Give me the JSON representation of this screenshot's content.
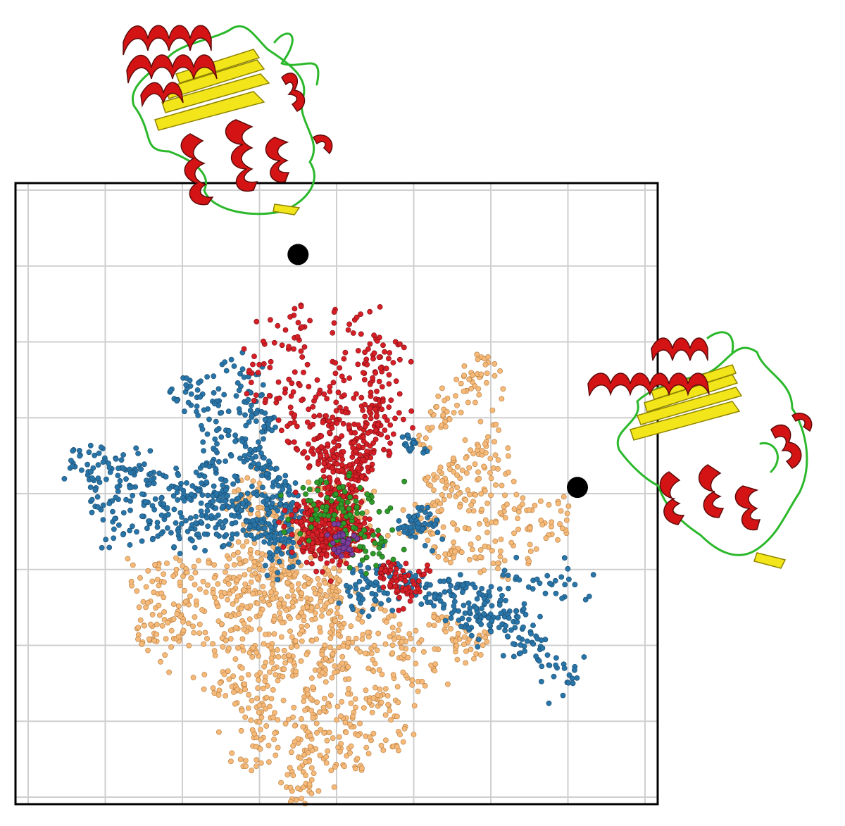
{
  "chart_data": {
    "type": "scatter",
    "title": "",
    "xlabel": "",
    "ylabel": "",
    "xlim": [
      0,
      1
    ],
    "ylim": [
      0,
      1
    ],
    "grid": true,
    "grid_divisions": 8,
    "legend": "none",
    "center": [
      0.5,
      0.43
    ],
    "series": [
      {
        "color": "#f5b979",
        "edge": "#b57a3a",
        "arms": [
          {
            "angle": -165,
            "r0": 0.06,
            "r1": 0.34,
            "n": 95
          },
          {
            "angle": -152,
            "r0": 0.07,
            "r1": 0.36,
            "n": 140
          },
          {
            "angle": -140,
            "r0": 0.08,
            "r1": 0.28,
            "n": 90
          },
          {
            "angle": -125,
            "r0": 0.08,
            "r1": 0.33,
            "n": 110
          },
          {
            "angle": -112,
            "r0": 0.07,
            "r1": 0.4,
            "n": 130
          },
          {
            "angle": -98,
            "r0": 0.05,
            "r1": 0.45,
            "n": 170
          },
          {
            "angle": -88,
            "r0": 0.05,
            "r1": 0.38,
            "n": 120
          },
          {
            "angle": -74,
            "r0": 0.08,
            "r1": 0.36,
            "n": 80
          },
          {
            "angle": -58,
            "r0": 0.12,
            "r1": 0.3,
            "n": 60
          },
          {
            "angle": -40,
            "r0": 0.2,
            "r1": 0.3,
            "n": 50
          },
          {
            "angle": -8,
            "r0": 0.15,
            "r1": 0.33,
            "n": 50
          },
          {
            "angle": 5,
            "r0": 0.1,
            "r1": 0.38,
            "n": 80
          },
          {
            "angle": 18,
            "r0": 0.12,
            "r1": 0.3,
            "n": 60
          },
          {
            "angle": 30,
            "r0": 0.16,
            "r1": 0.32,
            "n": 60
          },
          {
            "angle": 48,
            "r0": 0.2,
            "r1": 0.38,
            "n": 70
          },
          {
            "angle": 155,
            "r0": 0.07,
            "r1": 0.18,
            "n": 60
          },
          {
            "angle": 175,
            "r0": 0.05,
            "r1": 0.16,
            "n": 50
          }
        ],
        "clusters": [
          {
            "cx": 0.5,
            "cy": 0.45,
            "r": 0.06,
            "n": 120
          }
        ]
      },
      {
        "color": "#2a75a8",
        "edge": "#164a6e",
        "arms": [
          {
            "angle": 162,
            "r0": 0.15,
            "r1": 0.45,
            "n": 140
          },
          {
            "angle": 170,
            "r0": 0.1,
            "r1": 0.4,
            "n": 110
          },
          {
            "angle": 178,
            "r0": 0.08,
            "r1": 0.38,
            "n": 90
          },
          {
            "angle": 150,
            "r0": 0.06,
            "r1": 0.25,
            "n": 90
          },
          {
            "angle": 135,
            "r0": 0.08,
            "r1": 0.36,
            "n": 120
          },
          {
            "angle": 122,
            "r0": 0.2,
            "r1": 0.34,
            "n": 60
          },
          {
            "angle": -30,
            "r0": 0.1,
            "r1": 0.45,
            "n": 150
          },
          {
            "angle": -22,
            "r0": 0.18,
            "r1": 0.35,
            "n": 70
          },
          {
            "angle": -12,
            "r0": 0.25,
            "r1": 0.42,
            "n": 30
          },
          {
            "angle": 8,
            "r0": 0.1,
            "r1": 0.17,
            "n": 50
          },
          {
            "angle": 52,
            "r0": 0.18,
            "r1": 0.2,
            "n": 20
          }
        ],
        "clusters": [
          {
            "cx": 0.41,
            "cy": 0.42,
            "r": 0.04,
            "n": 60
          },
          {
            "cx": 0.56,
            "cy": 0.35,
            "r": 0.05,
            "n": 60
          }
        ]
      },
      {
        "color": "#d61f26",
        "edge": "#7a0d12",
        "arms": [
          {
            "angle": 101,
            "r0": 0.12,
            "r1": 0.38,
            "n": 60
          },
          {
            "angle": 87,
            "r0": 0.1,
            "r1": 0.38,
            "n": 50
          },
          {
            "angle": 76,
            "r0": 0.06,
            "r1": 0.33,
            "n": 150
          },
          {
            "angle": 67,
            "r0": 0.1,
            "r1": 0.24,
            "n": 60
          },
          {
            "angle": 113,
            "r0": 0.15,
            "r1": 0.34,
            "n": 45
          },
          {
            "angle": 96,
            "r0": 0.05,
            "r1": 0.2,
            "n": 90
          },
          {
            "angle": -35,
            "r0": 0.08,
            "r1": 0.16,
            "n": 70
          }
        ],
        "clusters": [
          {
            "cx": 0.5,
            "cy": 0.44,
            "r": 0.05,
            "n": 260
          },
          {
            "cx": 0.46,
            "cy": 0.45,
            "r": 0.04,
            "n": 80
          }
        ]
      },
      {
        "color": "#2f9a2a",
        "edge": "#165214",
        "arms": [],
        "clusters": [
          {
            "cx": 0.5,
            "cy": 0.48,
            "r": 0.06,
            "n": 90
          },
          {
            "cx": 0.55,
            "cy": 0.41,
            "r": 0.04,
            "n": 25
          }
        ]
      },
      {
        "color": "#7b3f9e",
        "edge": "#3e1c52",
        "arms": [],
        "clusters": [
          {
            "cx": 0.505,
            "cy": 0.42,
            "r": 0.025,
            "n": 35
          }
        ]
      }
    ],
    "markers": [
      {
        "x": 0.44,
        "y": 0.885
      },
      {
        "x": 0.875,
        "y": 0.51
      }
    ]
  },
  "structures": [
    {
      "name": "protein-structure-top"
    },
    {
      "name": "protein-structure-right"
    }
  ]
}
